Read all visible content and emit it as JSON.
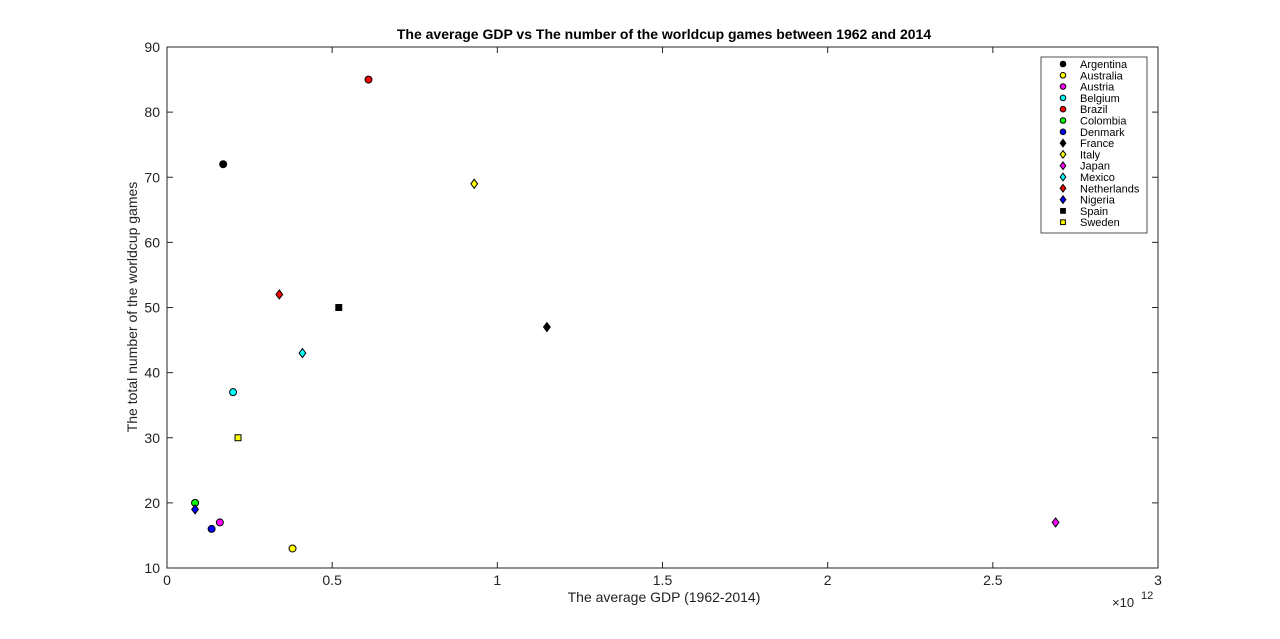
{
  "chart_data": {
    "type": "scatter",
    "title": "The average GDP vs The number of the worldcup games between 1962 and 2014",
    "xlabel": "The average GDP (1962-2014)",
    "ylabel": "The total number of the worldcup games",
    "x_exponent_base": "×10",
    "x_exponent_power": "12",
    "xlim": [
      0,
      3
    ],
    "ylim": [
      10,
      90
    ],
    "xticks": [
      0,
      0.5,
      1,
      1.5,
      2,
      2.5,
      3
    ],
    "xtick_labels": [
      "0",
      "0.5",
      "1",
      "1.5",
      "2",
      "2.5",
      "3"
    ],
    "yticks": [
      10,
      20,
      30,
      40,
      50,
      60,
      70,
      80,
      90
    ],
    "ytick_labels": [
      "10",
      "20",
      "30",
      "40",
      "50",
      "60",
      "70",
      "80",
      "90"
    ],
    "grid": false,
    "legend_position": "top-right",
    "series": [
      {
        "name": "Argentina",
        "marker": "circle",
        "color": "#000000",
        "x": 0.17,
        "y": 72
      },
      {
        "name": "Australia",
        "marker": "circle",
        "color": "#ffff00",
        "x": 0.38,
        "y": 13
      },
      {
        "name": "Austria",
        "marker": "circle",
        "color": "#ff00ff",
        "x": 0.16,
        "y": 17
      },
      {
        "name": "Belgium",
        "marker": "circle",
        "color": "#00ffff",
        "x": 0.2,
        "y": 37
      },
      {
        "name": "Brazil",
        "marker": "circle",
        "color": "#ff0000",
        "x": 0.61,
        "y": 85
      },
      {
        "name": "Colombia",
        "marker": "circle",
        "color": "#00ff00",
        "x": 0.085,
        "y": 20
      },
      {
        "name": "Denmark",
        "marker": "circle",
        "color": "#0000ff",
        "x": 0.135,
        "y": 16
      },
      {
        "name": "France",
        "marker": "diamond",
        "color": "#000000",
        "x": 1.15,
        "y": 47
      },
      {
        "name": "Italy",
        "marker": "diamond",
        "color": "#ffff00",
        "x": 0.93,
        "y": 69
      },
      {
        "name": "Japan",
        "marker": "diamond",
        "color": "#ff00ff",
        "x": 2.69,
        "y": 17
      },
      {
        "name": "Mexico",
        "marker": "diamond",
        "color": "#00ffff",
        "x": 0.41,
        "y": 43
      },
      {
        "name": "Netherlands",
        "marker": "diamond",
        "color": "#ff0000",
        "x": 0.34,
        "y": 52
      },
      {
        "name": "Nigeria",
        "marker": "diamond",
        "color": "#0000ff",
        "x": 0.085,
        "y": 19
      },
      {
        "name": "Spain",
        "marker": "square",
        "color": "#000000",
        "x": 0.52,
        "y": 50
      },
      {
        "name": "Sweden",
        "marker": "square",
        "color": "#ffff00",
        "x": 0.215,
        "y": 30
      }
    ]
  }
}
